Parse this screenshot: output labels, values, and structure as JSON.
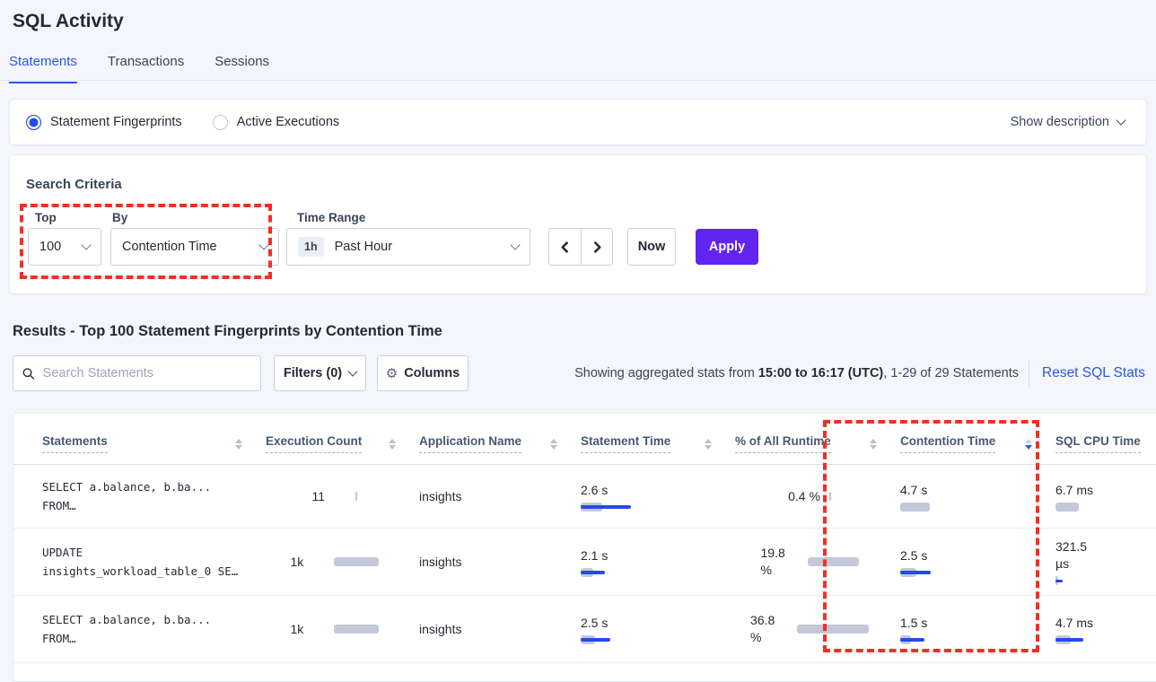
{
  "colors": {
    "accent_blue": "#2955F0",
    "apply_purple": "#6125F2",
    "bar_gray": "#C3C9DB",
    "bar_blue": "#2449EC",
    "annotation_red": "#F03023"
  },
  "header": {
    "title": "SQL Activity",
    "tabs": [
      "Statements",
      "Transactions",
      "Sessions"
    ]
  },
  "view_toggle": {
    "fingerprints_label": "Statement Fingerprints",
    "active_label": "Active Executions",
    "show_description": "Show description"
  },
  "search_criteria": {
    "heading": "Search Criteria",
    "top_label": "Top",
    "top_value": "100",
    "by_label": "By",
    "by_value": "Contention Time",
    "time_range_label": "Time Range",
    "time_range_badge": "1h",
    "time_range_value": "Past Hour",
    "now_label": "Now",
    "apply_label": "Apply"
  },
  "results": {
    "heading": "Results - Top 100 Statement Fingerprints by Contention Time",
    "search_placeholder": "Search Statements",
    "filters_label": "Filters (0)",
    "columns_label": "Columns",
    "showing_prefix": "Showing aggregated stats from ",
    "showing_bold": "15:00 to 16:17 (UTC)",
    "showing_suffix": ", 1-29 of 29 Statements",
    "reset_label": "Reset SQL Stats"
  },
  "table": {
    "headers": [
      "Statements",
      "Execution Count",
      "Application Name",
      "Statement Time",
      "% of All Runtime",
      "Contention Time",
      "SQL CPU Time"
    ],
    "sorted_by": "Contention Time",
    "sort_direction": "desc",
    "rows": [
      {
        "statement_line1": "SELECT a.balance, b.ba...",
        "statement_line2": "FROM…",
        "execution_count": "11",
        "execution_bar": {
          "gray": 2,
          "blue": 0
        },
        "application": "insights",
        "statement_time": "2.6 s",
        "statement_time_bar": {
          "gray": 24,
          "blue": 56
        },
        "runtime_pct": "0.4 %",
        "runtime_bar": {
          "gray": 2,
          "blue": 0
        },
        "contention_time": "4.7 s",
        "contention_bar": {
          "gray": 33,
          "blue": 0
        },
        "sql_cpu": "6.7 ms",
        "sql_cpu_bar": {
          "gray": 26,
          "blue": 0
        }
      },
      {
        "statement_line1": "UPDATE",
        "statement_line2": "insights_workload_table_0 SE…",
        "execution_count": "1k",
        "execution_bar": {
          "gray": 50,
          "blue": 0
        },
        "application": "insights",
        "statement_time": "2.1 s",
        "statement_time_bar": {
          "gray": 14,
          "blue": 27
        },
        "runtime_pct": "19.8 %",
        "runtime_bar": {
          "gray": 57,
          "blue": 0
        },
        "contention_time": "2.5 s",
        "contention_bar": {
          "gray": 18,
          "blue": 34
        },
        "sql_cpu": "321.5 µs",
        "sql_cpu_bar": {
          "gray": 3,
          "blue": 8
        }
      },
      {
        "statement_line1": "SELECT a.balance, b.ba...",
        "statement_line2": "FROM…",
        "execution_count": "1k",
        "execution_bar": {
          "gray": 50,
          "blue": 0
        },
        "application": "insights",
        "statement_time": "2.5 s",
        "statement_time_bar": {
          "gray": 16,
          "blue": 33
        },
        "runtime_pct": "36.8 %",
        "runtime_bar": {
          "gray": 80,
          "blue": 0
        },
        "contention_time": "1.5 s",
        "contention_bar": {
          "gray": 12,
          "blue": 27
        },
        "sql_cpu": "4.7 ms",
        "sql_cpu_bar": {
          "gray": 17,
          "blue": 31
        }
      }
    ]
  }
}
